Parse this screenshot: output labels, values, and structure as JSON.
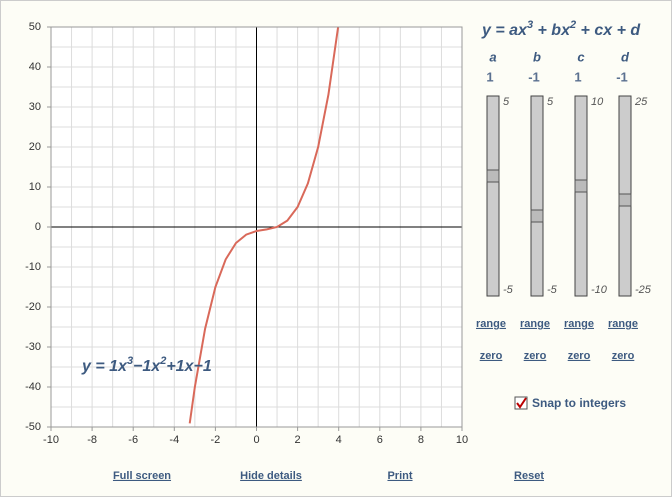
{
  "chart_data": {
    "type": "line",
    "curve_label": [
      "y = 1x",
      "3",
      "−1x",
      "2",
      "+1x−1"
    ],
    "x": [
      -3.25,
      -3,
      -2.5,
      -2,
      -1.5,
      -1,
      -0.5,
      0,
      0.5,
      1,
      1.5,
      2,
      2.5,
      3,
      3.5,
      4
    ],
    "values": [
      -49.1,
      -40,
      -25.4,
      -15,
      -8.1,
      -4,
      -1.9,
      -1,
      -0.6,
      0,
      1.6,
      5,
      10.9,
      20,
      33.1,
      51
    ],
    "color": "#d9695a",
    "xlim": [
      -10,
      10
    ],
    "xticks": [
      -10,
      -8,
      -6,
      -4,
      -2,
      0,
      2,
      4,
      6,
      8,
      10
    ],
    "ylim": [
      -50,
      50
    ],
    "yticks": [
      -50,
      -40,
      -30,
      -20,
      -10,
      0,
      10,
      20,
      30,
      40,
      50
    ],
    "xgrid": [
      -10,
      -9,
      -8,
      -7,
      -6,
      -5,
      -4,
      -3,
      -2,
      -1,
      0,
      1,
      2,
      3,
      4,
      5,
      6,
      7,
      8,
      9,
      10
    ],
    "ygrid": [
      -50,
      -45,
      -40,
      -35,
      -30,
      -25,
      -20,
      -15,
      -10,
      -5,
      0,
      5,
      10,
      15,
      20,
      25,
      30,
      35,
      40,
      45,
      50
    ]
  },
  "formula": [
    "y = ax",
    "3",
    " + bx",
    "2",
    " + cx + d"
  ],
  "sliders": [
    {
      "name": "a",
      "value": 1,
      "max": 5,
      "min": -5
    },
    {
      "name": "b",
      "value": -1,
      "max": 5,
      "min": -5
    },
    {
      "name": "c",
      "value": 1,
      "max": 10,
      "min": -10
    },
    {
      "name": "d",
      "value": -1,
      "max": 25,
      "min": -25
    }
  ],
  "range_link": "range",
  "zero_link": "zero",
  "snap_label": "Snap to integers",
  "footer_links": [
    "Full screen",
    "Hide details",
    "Print",
    "Reset"
  ]
}
